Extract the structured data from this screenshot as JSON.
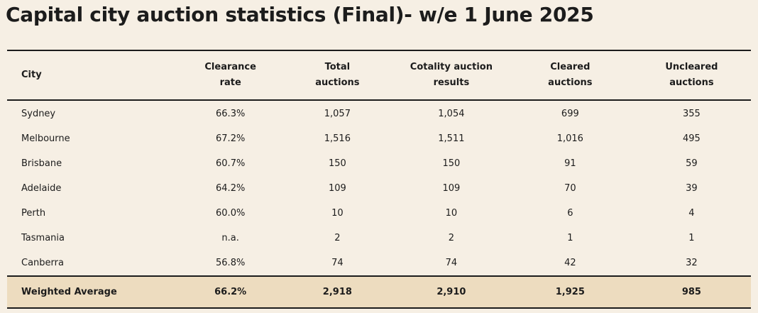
{
  "title": "Capital city auction statistics (Final)- w/e 1 June 2025",
  "table": {
    "headers": [
      [
        "City"
      ],
      [
        "Clearance",
        "rate"
      ],
      [
        "Total",
        "auctions"
      ],
      [
        "Cotality auction",
        "results"
      ],
      [
        "Cleared",
        "auctions"
      ],
      [
        "Uncleared",
        "auctions"
      ]
    ],
    "rows": [
      [
        "Sydney",
        "66.3%",
        "1,057",
        "1,054",
        "699",
        "355"
      ],
      [
        "Melbourne",
        "67.2%",
        "1,516",
        "1,511",
        "1,016",
        "495"
      ],
      [
        "Brisbane",
        "60.7%",
        "150",
        "150",
        "91",
        "59"
      ],
      [
        "Adelaide",
        "64.2%",
        "109",
        "109",
        "70",
        "39"
      ],
      [
        "Perth",
        "60.0%",
        "10",
        "10",
        "6",
        "4"
      ],
      [
        "Tasmania",
        "n.a.",
        "2",
        "2",
        "1",
        "1"
      ],
      [
        "Canberra",
        "56.8%",
        "74",
        "74",
        "42",
        "32"
      ]
    ],
    "total": [
      "Weighted Average",
      "66.2%",
      "2,918",
      "2,910",
      "1,925",
      "985"
    ]
  },
  "colors": {
    "background": "#f6efe4",
    "total_row_background": "#eddcbf",
    "text": "#1c1c1c"
  }
}
